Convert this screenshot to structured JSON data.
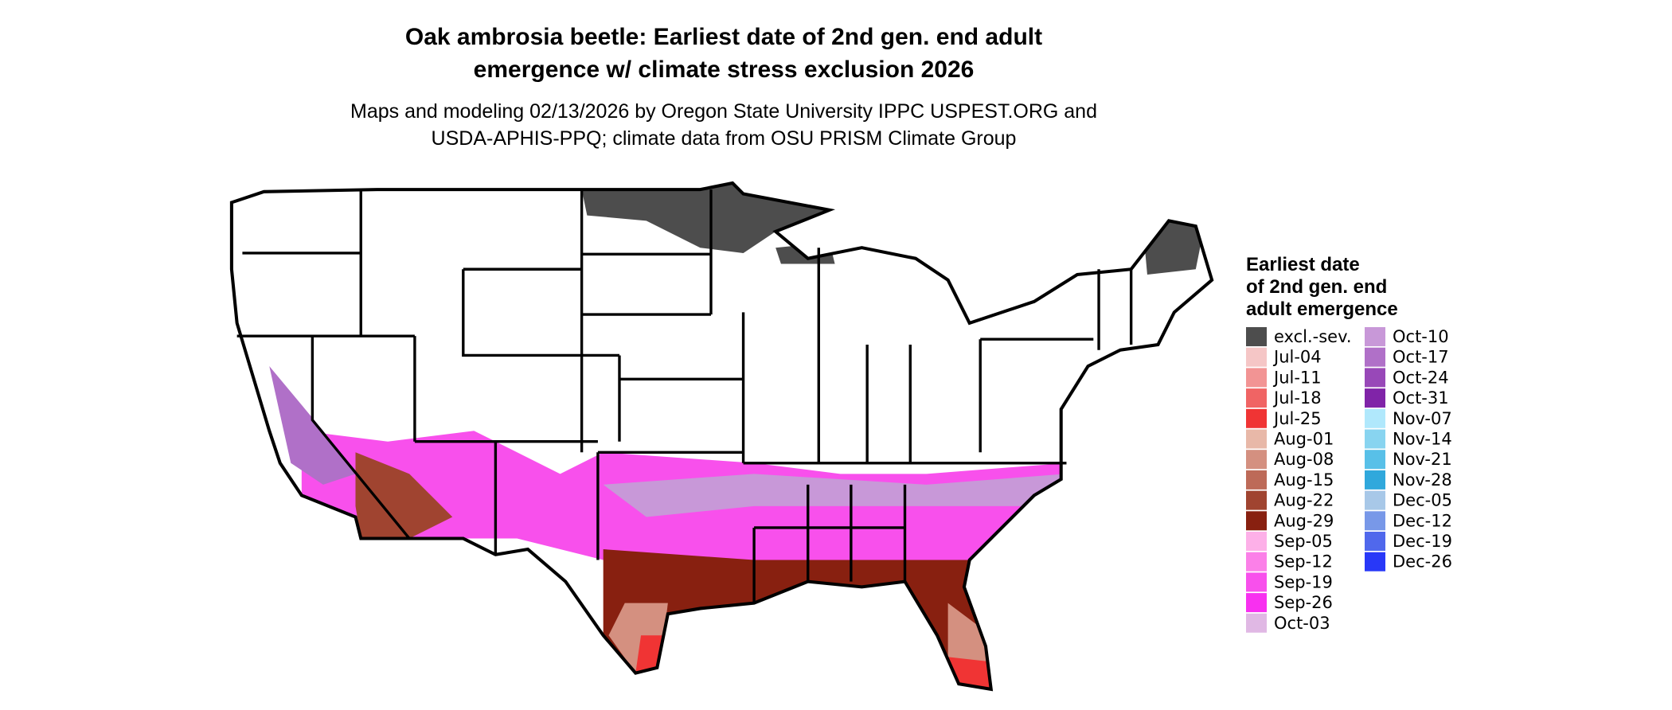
{
  "title": [
    "Oak ambrosia beetle: Earliest date of 2nd gen. end adult",
    "emergence w/ climate stress exclusion 2026"
  ],
  "subtitle": [
    "Maps and modeling 02/13/2026 by Oregon State University IPPC USPEST.ORG and",
    "USDA-APHIS-PPQ; climate data from OSU PRISM Climate Group"
  ],
  "legend": {
    "title": [
      "Earliest date",
      "of 2nd gen. end",
      "adult emergence"
    ],
    "items": [
      {
        "label": "excl.-sev.",
        "color": "#4d4d4d"
      },
      {
        "label": "Jul-04",
        "color": "#f5c6c6"
      },
      {
        "label": "Jul-11",
        "color": "#f29494"
      },
      {
        "label": "Jul-18",
        "color": "#f06464"
      },
      {
        "label": "Jul-25",
        "color": "#f03434"
      },
      {
        "label": "Aug-01",
        "color": "#e8b8a8"
      },
      {
        "label": "Aug-08",
        "color": "#d49080"
      },
      {
        "label": "Aug-15",
        "color": "#bd6a58"
      },
      {
        "label": "Aug-22",
        "color": "#a04430"
      },
      {
        "label": "Aug-29",
        "color": "#882010"
      },
      {
        "label": "Sep-05",
        "color": "#fdb0e8"
      },
      {
        "label": "Sep-12",
        "color": "#fb80e8"
      },
      {
        "label": "Sep-19",
        "color": "#f850ec"
      },
      {
        "label": "Sep-26",
        "color": "#f830f0"
      },
      {
        "label": "Oct-03",
        "color": "#e0b8e4"
      },
      {
        "label": "Oct-10",
        "color": "#c898d8"
      },
      {
        "label": "Oct-17",
        "color": "#b070c8"
      },
      {
        "label": "Oct-24",
        "color": "#9848b8"
      },
      {
        "label": "Oct-31",
        "color": "#8024a8"
      },
      {
        "label": "Nov-07",
        "color": "#b0e8fc"
      },
      {
        "label": "Nov-14",
        "color": "#88d4f0"
      },
      {
        "label": "Nov-21",
        "color": "#58c0e8"
      },
      {
        "label": "Nov-28",
        "color": "#30a8dc"
      },
      {
        "label": "Dec-05",
        "color": "#a8c8e8"
      },
      {
        "label": "Dec-12",
        "color": "#7898e8"
      },
      {
        "label": "Dec-19",
        "color": "#5068ec"
      },
      {
        "label": "Dec-26",
        "color": "#2838f8"
      }
    ]
  }
}
